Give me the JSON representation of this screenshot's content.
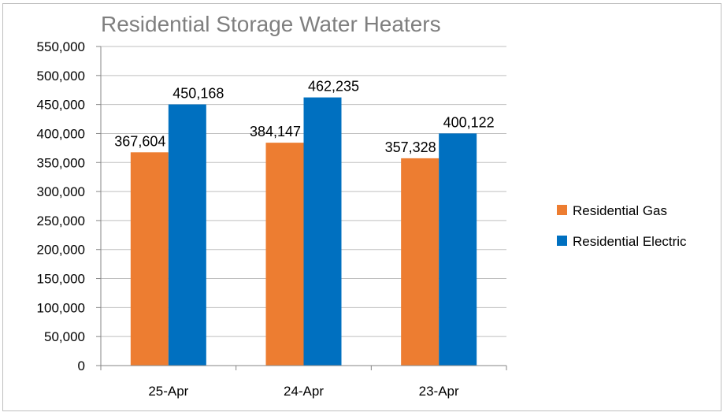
{
  "chart_data": {
    "type": "bar",
    "title": "Residential Storage Water Heaters",
    "categories": [
      "25-Apr",
      "24-Apr",
      "23-Apr"
    ],
    "series": [
      {
        "name": "Residential Gas",
        "color": "#ed7d31",
        "values": [
          367604,
          384147,
          357328
        ],
        "labels": [
          "367,604",
          "384,147",
          "357,328"
        ]
      },
      {
        "name": "Residential Electric",
        "color": "#0070c0",
        "values": [
          450168,
          462235,
          400122
        ],
        "labels": [
          "450,168",
          "462,235",
          "400,122"
        ]
      }
    ],
    "ylim": [
      0,
      550000
    ],
    "yticks": [
      0,
      50000,
      100000,
      150000,
      200000,
      250000,
      300000,
      350000,
      400000,
      450000,
      500000,
      550000
    ],
    "ytick_labels": [
      "0",
      "50,000",
      "100,000",
      "150,000",
      "200,000",
      "250,000",
      "300,000",
      "350,000",
      "400,000",
      "450,000",
      "500,000",
      "550,000"
    ],
    "grid": true,
    "legend_position": "right",
    "xlabel": "",
    "ylabel": ""
  }
}
